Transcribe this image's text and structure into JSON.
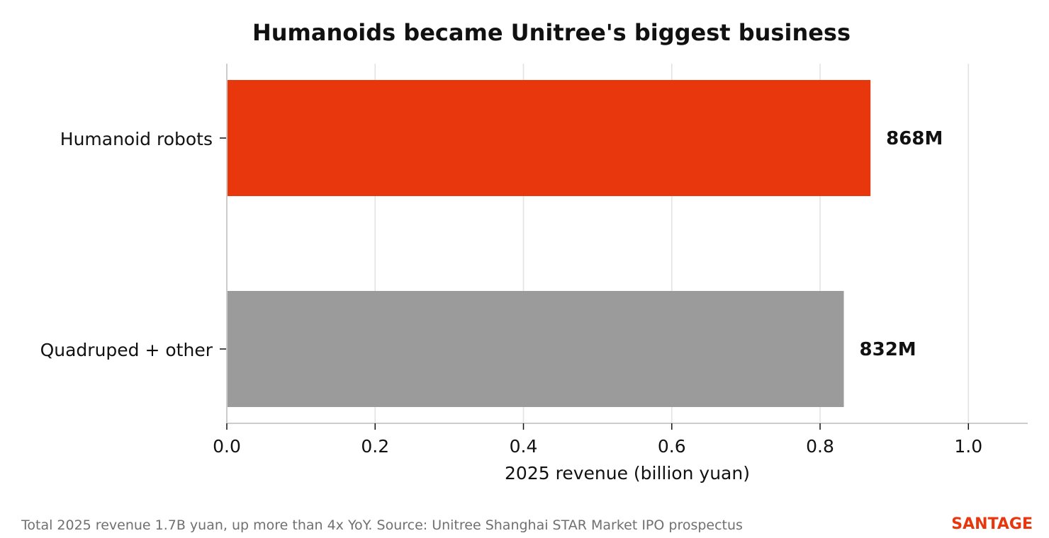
{
  "colors": {
    "highlight": "#e8360d",
    "base": "#9b9b9b",
    "grid": "#e3e3e3",
    "axis": "#cccccc",
    "text": "#111111",
    "footer": "#707070",
    "brand": "#e8360d"
  },
  "chart_data": {
    "type": "bar",
    "orientation": "horizontal",
    "title": "Humanoids became Unitree's biggest business",
    "xlabel": "2025 revenue (billion yuan)",
    "ylabel": "",
    "xlim": [
      0,
      1.08
    ],
    "xticks": [
      0.0,
      0.2,
      0.4,
      0.6,
      0.8,
      1.0
    ],
    "xtick_labels": [
      "0.0",
      "0.2",
      "0.4",
      "0.6",
      "0.8",
      "1.0"
    ],
    "grid": "vertical",
    "categories": [
      "Humanoid robots",
      "Quadruped + other"
    ],
    "values": [
      0.868,
      0.832
    ],
    "value_labels": [
      "868M",
      "832M"
    ],
    "bar_colors": [
      "#e8360d",
      "#9b9b9b"
    ]
  },
  "footer": {
    "note": "Total 2025 revenue 1.7B yuan, up more than 4x YoY. Source: Unitree Shanghai STAR Market IPO prospectus",
    "brand": "SANTAGE"
  }
}
